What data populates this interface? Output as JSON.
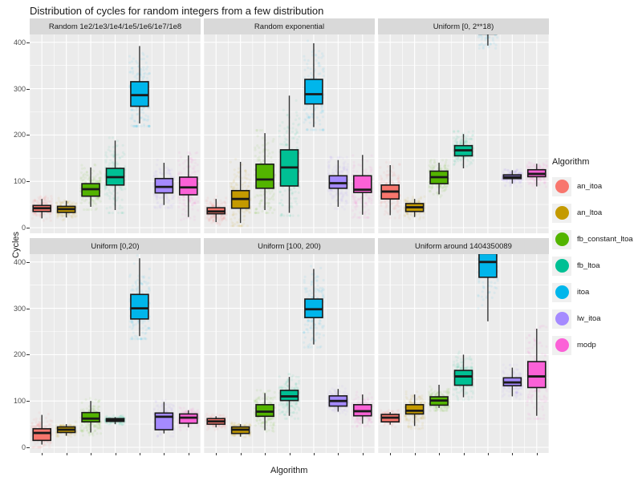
{
  "title": "Distribution of cycles for random integers from a few distribution",
  "axes": {
    "x_label": "Algorithm",
    "y_label": "Cycles",
    "y_ticks": [
      0,
      100,
      200,
      300,
      400
    ],
    "y_minor": [
      50,
      150,
      250,
      350
    ],
    "ylim": [
      0,
      430
    ]
  },
  "legend": {
    "title": "Algorithm",
    "entries": [
      {
        "label": "an_itoa",
        "color": "#F8766D"
      },
      {
        "label": "an_ltoa",
        "color": "#C49A00"
      },
      {
        "label": "fb_constant_ltoa",
        "color": "#53B400"
      },
      {
        "label": "fb_ltoa",
        "color": "#00C094"
      },
      {
        "label": "itoa",
        "color": "#00B6EB"
      },
      {
        "label": "lw_itoa",
        "color": "#A58AFF"
      },
      {
        "label": "modp",
        "color": "#FB61D7"
      }
    ]
  },
  "chart_data": {
    "type": "boxplot-faceted",
    "facet_grid": {
      "rows": 2,
      "cols": 3
    },
    "categories": [
      "an_itoa",
      "an_ltoa",
      "fb_constant_ltoa",
      "fb_ltoa",
      "itoa",
      "lw_itoa",
      "modp"
    ],
    "colors": [
      "#F8766D",
      "#C49A00",
      "#53B400",
      "#00C094",
      "#00B6EB",
      "#A58AFF",
      "#FB61D7"
    ],
    "panel_background": "#EBEBEB",
    "strip_background": "#D9D9D9",
    "grid_color": "#FFFFFF",
    "facets": [
      {
        "label": "Random 1e2/1e3/1e4/1e5/1e6/1e7/1e8",
        "boxes": [
          {
            "algorithm": "an_itoa",
            "whisker_low": 20,
            "q1": 35,
            "median": 42,
            "q3": 48,
            "whisker_high": 62
          },
          {
            "algorithm": "an_ltoa",
            "whisker_low": 22,
            "q1": 33,
            "median": 40,
            "q3": 46,
            "whisker_high": 58
          },
          {
            "algorithm": "fb_constant_ltoa",
            "whisker_low": 45,
            "q1": 68,
            "median": 83,
            "q3": 95,
            "whisker_high": 130
          },
          {
            "algorithm": "fb_ltoa",
            "whisker_low": 38,
            "q1": 92,
            "median": 109,
            "q3": 128,
            "whisker_high": 188
          },
          {
            "algorithm": "itoa",
            "whisker_low": 225,
            "q1": 262,
            "median": 286,
            "q3": 315,
            "whisker_high": 392
          },
          {
            "algorithm": "lw_itoa",
            "whisker_low": 49,
            "q1": 75,
            "median": 88,
            "q3": 106,
            "whisker_high": 140
          },
          {
            "algorithm": "modp",
            "whisker_low": 23,
            "q1": 71,
            "median": 87,
            "q3": 109,
            "whisker_high": 156
          }
        ]
      },
      {
        "label": "Random exponential",
        "boxes": [
          {
            "algorithm": "an_itoa",
            "whisker_low": 12,
            "q1": 30,
            "median": 35,
            "q3": 43,
            "whisker_high": 62
          },
          {
            "algorithm": "an_ltoa",
            "whisker_low": 10,
            "q1": 42,
            "median": 62,
            "q3": 80,
            "whisker_high": 142
          },
          {
            "algorithm": "fb_constant_ltoa",
            "whisker_low": 38,
            "q1": 85,
            "median": 104,
            "q3": 137,
            "whisker_high": 204
          },
          {
            "algorithm": "fb_ltoa",
            "whisker_low": 32,
            "q1": 90,
            "median": 130,
            "q3": 168,
            "whisker_high": 285
          },
          {
            "algorithm": "itoa",
            "whisker_low": 217,
            "q1": 267,
            "median": 288,
            "q3": 320,
            "whisker_high": 398
          },
          {
            "algorithm": "lw_itoa",
            "whisker_low": 45,
            "q1": 85,
            "median": 96,
            "q3": 112,
            "whisker_high": 146
          },
          {
            "algorithm": "modp",
            "whisker_low": 28,
            "q1": 76,
            "median": 82,
            "q3": 112,
            "whisker_high": 157
          }
        ]
      },
      {
        "label": "Uniform [0, 2**18)",
        "boxes": [
          {
            "algorithm": "an_itoa",
            "whisker_low": 27,
            "q1": 62,
            "median": 78,
            "q3": 92,
            "whisker_high": 135
          },
          {
            "algorithm": "an_ltoa",
            "whisker_low": 23,
            "q1": 35,
            "median": 44,
            "q3": 52,
            "whisker_high": 62
          },
          {
            "algorithm": "fb_constant_ltoa",
            "whisker_low": 72,
            "q1": 95,
            "median": 109,
            "q3": 122,
            "whisker_high": 140
          },
          {
            "algorithm": "fb_ltoa",
            "whisker_low": 128,
            "q1": 155,
            "median": 167,
            "q3": 177,
            "whisker_high": 202
          },
          {
            "algorithm": "itoa",
            "whisker_low": 393,
            "q1": 418,
            "median": 440,
            "q3": 468,
            "whisker_high": 495,
            "clipped_top": true
          },
          {
            "algorithm": "lw_itoa",
            "whisker_low": 95,
            "q1": 106,
            "median": 109,
            "q3": 114,
            "whisker_high": 124
          },
          {
            "algorithm": "modp",
            "whisker_low": 89,
            "q1": 110,
            "median": 116,
            "q3": 125,
            "whisker_high": 138
          }
        ]
      },
      {
        "label": "Uniform [0,20)",
        "boxes": [
          {
            "algorithm": "an_itoa",
            "whisker_low": 6,
            "q1": 15,
            "median": 31,
            "q3": 40,
            "whisker_high": 70
          },
          {
            "algorithm": "an_ltoa",
            "whisker_low": 25,
            "q1": 32,
            "median": 38,
            "q3": 44,
            "whisker_high": 50
          },
          {
            "algorithm": "fb_constant_ltoa",
            "whisker_low": 32,
            "q1": 55,
            "median": 62,
            "q3": 75,
            "whisker_high": 100
          },
          {
            "algorithm": "fb_ltoa",
            "whisker_low": 50,
            "q1": 56,
            "median": 59,
            "q3": 62,
            "whisker_high": 65
          },
          {
            "algorithm": "itoa",
            "whisker_low": 240,
            "q1": 277,
            "median": 300,
            "q3": 330,
            "whisker_high": 408
          },
          {
            "algorithm": "lw_itoa",
            "whisker_low": 30,
            "q1": 38,
            "median": 66,
            "q3": 74,
            "whisker_high": 98
          },
          {
            "algorithm": "modp",
            "whisker_low": 43,
            "q1": 52,
            "median": 64,
            "q3": 72,
            "whisker_high": 80
          }
        ]
      },
      {
        "label": "Uniform [100, 200)",
        "boxes": [
          {
            "algorithm": "an_itoa",
            "whisker_low": 43,
            "q1": 50,
            "median": 56,
            "q3": 62,
            "whisker_high": 67
          },
          {
            "algorithm": "an_ltoa",
            "whisker_low": 23,
            "q1": 30,
            "median": 38,
            "q3": 44,
            "whisker_high": 50
          },
          {
            "algorithm": "fb_constant_ltoa",
            "whisker_low": 37,
            "q1": 67,
            "median": 77,
            "q3": 92,
            "whisker_high": 117
          },
          {
            "algorithm": "fb_ltoa",
            "whisker_low": 68,
            "q1": 101,
            "median": 110,
            "q3": 123,
            "whisker_high": 152
          },
          {
            "algorithm": "itoa",
            "whisker_low": 222,
            "q1": 280,
            "median": 298,
            "q3": 320,
            "whisker_high": 385
          },
          {
            "algorithm": "lw_itoa",
            "whisker_low": 77,
            "q1": 89,
            "median": 100,
            "q3": 111,
            "whisker_high": 126
          },
          {
            "algorithm": "modp",
            "whisker_low": 51,
            "q1": 68,
            "median": 78,
            "q3": 92,
            "whisker_high": 114
          }
        ]
      },
      {
        "label": "Uniform around 1404350089",
        "boxes": [
          {
            "algorithm": "an_itoa",
            "whisker_low": 49,
            "q1": 55,
            "median": 64,
            "q3": 71,
            "whisker_high": 76
          },
          {
            "algorithm": "an_ltoa",
            "whisker_low": 46,
            "q1": 72,
            "median": 79,
            "q3": 92,
            "whisker_high": 114
          },
          {
            "algorithm": "fb_constant_ltoa",
            "whisker_low": 85,
            "q1": 91,
            "median": 101,
            "q3": 109,
            "whisker_high": 135
          },
          {
            "algorithm": "fb_ltoa",
            "whisker_low": 108,
            "q1": 134,
            "median": 153,
            "q3": 166,
            "whisker_high": 200
          },
          {
            "algorithm": "itoa",
            "whisker_low": 272,
            "q1": 367,
            "median": 400,
            "q3": 418,
            "whisker_high": 428,
            "clipped_top": true
          },
          {
            "algorithm": "lw_itoa",
            "whisker_low": 110,
            "q1": 133,
            "median": 140,
            "q3": 150,
            "whisker_high": 172
          },
          {
            "algorithm": "modp",
            "whisker_low": 68,
            "q1": 129,
            "median": 153,
            "q3": 185,
            "whisker_high": 256
          }
        ]
      }
    ]
  }
}
